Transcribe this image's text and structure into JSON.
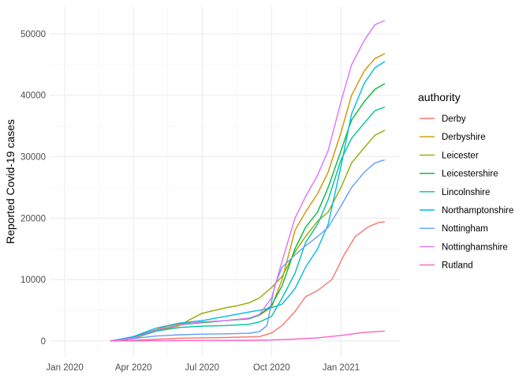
{
  "chart_data": {
    "type": "line",
    "title": "",
    "xlabel": "",
    "ylabel": "Reported Covid-19 cases",
    "x_ticks": [
      "2020-01-01",
      "2020-04-01",
      "2020-07-01",
      "2020-10-01",
      "2021-01-01"
    ],
    "x_tick_labels": [
      "Jan 2020",
      "Apr 2020",
      "Jul 2020",
      "Oct 2020",
      "Jan 2021"
    ],
    "xlim": [
      "2019-12-12",
      "2021-03-20"
    ],
    "y_ticks": [
      0,
      10000,
      20000,
      30000,
      40000,
      50000
    ],
    "y_tick_labels": [
      "0",
      "10000",
      "20000",
      "30000",
      "40000",
      "50000"
    ],
    "ylim": [
      -2600,
      54500
    ],
    "grid": true,
    "legend": {
      "title": "authority",
      "position": "right"
    },
    "series": [
      {
        "name": "Derby",
        "color": "#F8766D",
        "points": [
          [
            "2020-03-01",
            0
          ],
          [
            "2020-04-01",
            100
          ],
          [
            "2020-06-01",
            450
          ],
          [
            "2020-08-01",
            550
          ],
          [
            "2020-09-15",
            700
          ],
          [
            "2020-10-01",
            1300
          ],
          [
            "2020-10-15",
            2500
          ],
          [
            "2020-11-01",
            4800
          ],
          [
            "2020-11-15",
            7200
          ],
          [
            "2020-12-01",
            8200
          ],
          [
            "2020-12-20",
            10000
          ],
          [
            "2021-01-05",
            14000
          ],
          [
            "2021-01-20",
            17000
          ],
          [
            "2021-02-05",
            18500
          ],
          [
            "2021-02-20",
            19300
          ],
          [
            "2021-02-28",
            19400
          ]
        ]
      },
      {
        "name": "Derbyshire",
        "color": "#D39200",
        "points": [
          [
            "2020-03-01",
            0
          ],
          [
            "2020-03-20",
            100
          ],
          [
            "2020-04-15",
            1200
          ],
          [
            "2020-05-15",
            2400
          ],
          [
            "2020-06-01",
            2800
          ],
          [
            "2020-07-01",
            3000
          ],
          [
            "2020-08-01",
            3300
          ],
          [
            "2020-09-01",
            3700
          ],
          [
            "2020-09-15",
            4200
          ],
          [
            "2020-10-01",
            5500
          ],
          [
            "2020-10-15",
            10000
          ],
          [
            "2020-11-01",
            18000
          ],
          [
            "2020-11-15",
            21000
          ],
          [
            "2020-12-01",
            24000
          ],
          [
            "2020-12-15",
            27500
          ],
          [
            "2021-01-01",
            34000
          ],
          [
            "2021-01-15",
            40000
          ],
          [
            "2021-02-01",
            44000
          ],
          [
            "2021-02-15",
            46000
          ],
          [
            "2021-02-28",
            46800
          ]
        ]
      },
      {
        "name": "Leicester",
        "color": "#93AA00",
        "points": [
          [
            "2020-03-01",
            0
          ],
          [
            "2020-04-01",
            400
          ],
          [
            "2020-05-01",
            1600
          ],
          [
            "2020-06-01",
            2500
          ],
          [
            "2020-06-15",
            3500
          ],
          [
            "2020-07-01",
            4500
          ],
          [
            "2020-08-01",
            5400
          ],
          [
            "2020-08-15",
            5700
          ],
          [
            "2020-09-01",
            6200
          ],
          [
            "2020-09-15",
            7000
          ],
          [
            "2020-10-01",
            8700
          ],
          [
            "2020-10-15",
            10500
          ],
          [
            "2020-11-01",
            14500
          ],
          [
            "2020-11-15",
            17000
          ],
          [
            "2020-12-01",
            19500
          ],
          [
            "2020-12-15",
            21000
          ],
          [
            "2021-01-01",
            25000
          ],
          [
            "2021-01-15",
            29000
          ],
          [
            "2021-02-01",
            31500
          ],
          [
            "2021-02-15",
            33500
          ],
          [
            "2021-02-28",
            34300
          ]
        ]
      },
      {
        "name": "Leicestershire",
        "color": "#00BA38",
        "points": [
          [
            "2020-03-01",
            0
          ],
          [
            "2020-04-01",
            600
          ],
          [
            "2020-05-01",
            1800
          ],
          [
            "2020-06-01",
            2600
          ],
          [
            "2020-07-01",
            3000
          ],
          [
            "2020-08-01",
            3300
          ],
          [
            "2020-09-01",
            3600
          ],
          [
            "2020-09-15",
            4200
          ],
          [
            "2020-10-01",
            5800
          ],
          [
            "2020-10-15",
            9000
          ],
          [
            "2020-11-01",
            15000
          ],
          [
            "2020-11-15",
            18500
          ],
          [
            "2020-12-01",
            21000
          ],
          [
            "2020-12-15",
            25000
          ],
          [
            "2021-01-01",
            31000
          ],
          [
            "2021-01-15",
            36000
          ],
          [
            "2021-02-01",
            39000
          ],
          [
            "2021-02-15",
            41000
          ],
          [
            "2021-02-28",
            41900
          ]
        ]
      },
      {
        "name": "Lincolnshire",
        "color": "#00C19F",
        "points": [
          [
            "2020-03-01",
            0
          ],
          [
            "2020-04-01",
            500
          ],
          [
            "2020-05-01",
            1600
          ],
          [
            "2020-06-01",
            2200
          ],
          [
            "2020-07-01",
            2400
          ],
          [
            "2020-08-01",
            2500
          ],
          [
            "2020-09-01",
            2700
          ],
          [
            "2020-09-15",
            3100
          ],
          [
            "2020-10-01",
            4000
          ],
          [
            "2020-10-15",
            7000
          ],
          [
            "2020-11-01",
            11000
          ],
          [
            "2020-11-15",
            16000
          ],
          [
            "2020-12-01",
            19000
          ],
          [
            "2020-12-15",
            23000
          ],
          [
            "2021-01-01",
            29500
          ],
          [
            "2021-01-15",
            33000
          ],
          [
            "2021-02-01",
            35500
          ],
          [
            "2021-02-15",
            37500
          ],
          [
            "2021-02-28",
            38100
          ]
        ]
      },
      {
        "name": "Northamptonshire",
        "color": "#00B9E3",
        "points": [
          [
            "2020-03-01",
            0
          ],
          [
            "2020-04-01",
            700
          ],
          [
            "2020-05-01",
            2100
          ],
          [
            "2020-06-01",
            2900
          ],
          [
            "2020-07-01",
            3300
          ],
          [
            "2020-08-01",
            4000
          ],
          [
            "2020-09-01",
            4700
          ],
          [
            "2020-09-15",
            5000
          ],
          [
            "2020-10-01",
            5400
          ],
          [
            "2020-10-15",
            6000
          ],
          [
            "2020-11-01",
            8500
          ],
          [
            "2020-11-15",
            12000
          ],
          [
            "2020-12-01",
            15000
          ],
          [
            "2020-12-15",
            19000
          ],
          [
            "2021-01-01",
            28500
          ],
          [
            "2021-01-15",
            37000
          ],
          [
            "2021-02-01",
            42000
          ],
          [
            "2021-02-15",
            44500
          ],
          [
            "2021-02-28",
            45500
          ]
        ]
      },
      {
        "name": "Nottingham",
        "color": "#619CFF",
        "points": [
          [
            "2020-03-01",
            0
          ],
          [
            "2020-04-01",
            400
          ],
          [
            "2020-05-01",
            800
          ],
          [
            "2020-06-01",
            1000
          ],
          [
            "2020-07-01",
            1100
          ],
          [
            "2020-08-01",
            1150
          ],
          [
            "2020-09-01",
            1250
          ],
          [
            "2020-09-15",
            1500
          ],
          [
            "2020-09-25",
            2500
          ],
          [
            "2020-10-05",
            9000
          ],
          [
            "2020-10-15",
            12000
          ],
          [
            "2020-11-01",
            14000
          ],
          [
            "2020-11-15",
            15500
          ],
          [
            "2020-12-01",
            17000
          ],
          [
            "2020-12-15",
            18500
          ],
          [
            "2021-01-01",
            22000
          ],
          [
            "2021-01-15",
            25000
          ],
          [
            "2021-02-01",
            27500
          ],
          [
            "2021-02-15",
            29000
          ],
          [
            "2021-02-28",
            29500
          ]
        ]
      },
      {
        "name": "Nottinghamshire",
        "color": "#DB72FB",
        "points": [
          [
            "2020-03-01",
            0
          ],
          [
            "2020-04-01",
            500
          ],
          [
            "2020-05-01",
            1800
          ],
          [
            "2020-06-01",
            2600
          ],
          [
            "2020-07-01",
            3100
          ],
          [
            "2020-08-01",
            3300
          ],
          [
            "2020-09-01",
            3700
          ],
          [
            "2020-09-15",
            4300
          ],
          [
            "2020-10-01",
            7000
          ],
          [
            "2020-10-15",
            13000
          ],
          [
            "2020-11-01",
            20000
          ],
          [
            "2020-11-15",
            23500
          ],
          [
            "2020-12-01",
            27000
          ],
          [
            "2020-12-15",
            31000
          ],
          [
            "2021-01-01",
            39000
          ],
          [
            "2021-01-15",
            45000
          ],
          [
            "2021-02-01",
            49000
          ],
          [
            "2021-02-15",
            51500
          ],
          [
            "2021-02-28",
            52200
          ]
        ]
      },
      {
        "name": "Rutland",
        "color": "#FF61C3",
        "points": [
          [
            "2020-03-01",
            0
          ],
          [
            "2020-05-01",
            50
          ],
          [
            "2020-07-01",
            80
          ],
          [
            "2020-09-01",
            100
          ],
          [
            "2020-10-01",
            150
          ],
          [
            "2020-11-01",
            300
          ],
          [
            "2020-12-01",
            500
          ],
          [
            "2021-01-01",
            900
          ],
          [
            "2021-02-01",
            1400
          ],
          [
            "2021-02-28",
            1600
          ]
        ]
      }
    ]
  }
}
